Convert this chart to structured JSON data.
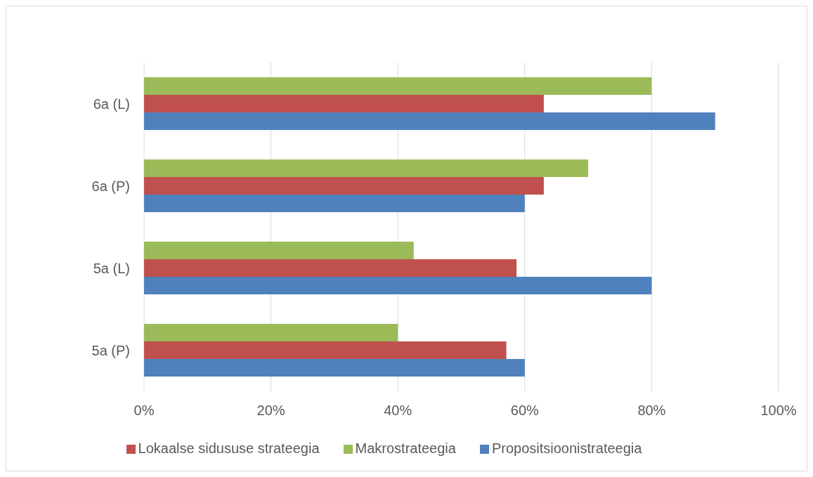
{
  "chart_data": {
    "type": "bar",
    "orientation": "horizontal",
    "categories": [
      "6a (L)",
      "6a (P)",
      "5a (L)",
      "5a (P)"
    ],
    "series": [
      {
        "name": "Makrostrateegia",
        "color": "#9bbb59",
        "values": [
          80,
          70,
          42.5,
          40
        ]
      },
      {
        "name": "Lokaalse sidususe strateegia",
        "color": "#c0504d",
        "values": [
          63,
          63,
          58.7,
          57.1
        ]
      },
      {
        "name": "Propositsioonistrateegia",
        "color": "#4f81bd",
        "values": [
          90,
          60,
          80,
          60
        ]
      }
    ],
    "xlim": [
      0,
      100
    ],
    "xticks": [
      {
        "value": 0,
        "label": "0%"
      },
      {
        "value": 20,
        "label": "20%"
      },
      {
        "value": 40,
        "label": "40%"
      },
      {
        "value": 60,
        "label": "60%"
      },
      {
        "value": 80,
        "label": "80%"
      },
      {
        "value": 100,
        "label": "100%"
      }
    ],
    "grid": "x",
    "legend": "bottom"
  }
}
